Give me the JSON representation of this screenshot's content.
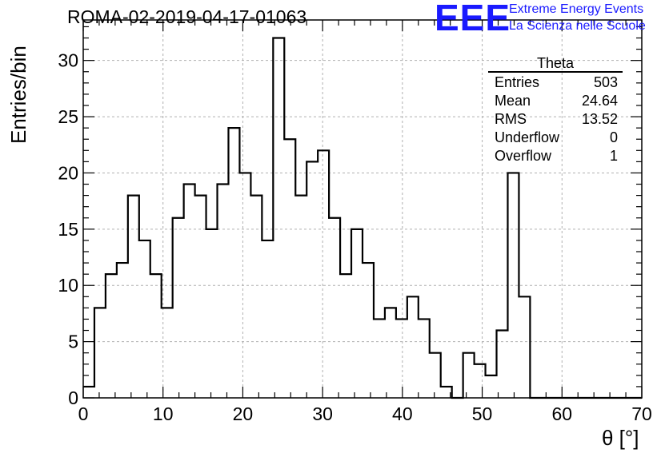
{
  "chart_data": {
    "type": "histogram",
    "title": "ROMA-02-2019-04-17-01063",
    "xlabel": "θ [°]",
    "ylabel": "Entries/bin",
    "xlim": [
      0,
      70
    ],
    "ylim": [
      0,
      33.6
    ],
    "bin_width": 1.4,
    "bin_edges_start": 0,
    "values": [
      1,
      8,
      11,
      12,
      18,
      14,
      11,
      8,
      16,
      19,
      18,
      15,
      19,
      24,
      20,
      18,
      14,
      32,
      23,
      18,
      21,
      22,
      16,
      11,
      15,
      12,
      7,
      8,
      7,
      9,
      7,
      4,
      1,
      0,
      4,
      3,
      2,
      6,
      20,
      9,
      0,
      0,
      0,
      0,
      0,
      0,
      0,
      0,
      0,
      0
    ],
    "xticks": [
      0,
      10,
      20,
      30,
      40,
      50,
      60,
      70
    ],
    "yticks": [
      0,
      5,
      10,
      15,
      20,
      25,
      30
    ],
    "grid": true,
    "line_color": "#000000",
    "grid_color": "#b0b0b0"
  },
  "stats_box": {
    "title": "Theta",
    "rows": [
      {
        "label": "Entries",
        "value": "503"
      },
      {
        "label": "Mean",
        "value": "24.64"
      },
      {
        "label": "RMS",
        "value": "13.52"
      },
      {
        "label": "Underflow",
        "value": "0"
      },
      {
        "label": "Overflow",
        "value": "1"
      }
    ]
  },
  "logo": {
    "mark": "EEE",
    "line1": "Extreme Energy Events",
    "line2": "La Scienza nelle Scuole",
    "color": "#1a1aff"
  }
}
